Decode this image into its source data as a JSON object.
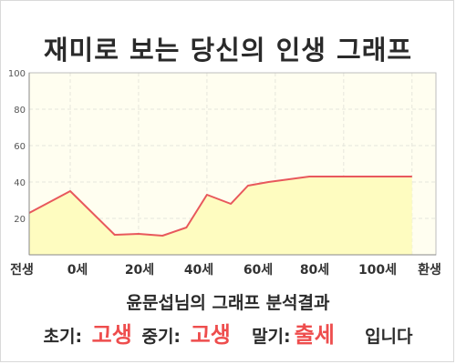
{
  "title": "재미로 보는 당신의 인생 그래프",
  "result": {
    "title": "윤문섭님의 그래프 분석결과",
    "early_label": "초기:",
    "early_value": "고생",
    "middle_label": "중기:",
    "middle_value": "고생",
    "late_label": "말기:",
    "late_value": "출세",
    "suffix": "입니다"
  },
  "colors": {
    "line": "#e8585c",
    "fill": "#fefcc0",
    "plot_bg": "#fffef0",
    "grid": "#e6e6dc",
    "accent": "#ee4d4d"
  },
  "chart_data": {
    "type": "area",
    "x_labels": [
      "전생",
      "0세",
      "20세",
      "40세",
      "60세",
      "80세",
      "100세",
      "환생"
    ],
    "x": [
      -12,
      0,
      13,
      20,
      27,
      34,
      40,
      47,
      52,
      58,
      70,
      84,
      100
    ],
    "y": [
      23,
      35,
      11,
      11.5,
      10.5,
      15,
      33,
      28,
      38,
      40,
      43,
      43,
      43
    ],
    "ylim": [
      0,
      100
    ],
    "y_ticks": [
      "20",
      "40",
      "60",
      "80",
      "100"
    ],
    "grid": true,
    "title": "",
    "xlabel": "",
    "ylabel": ""
  }
}
